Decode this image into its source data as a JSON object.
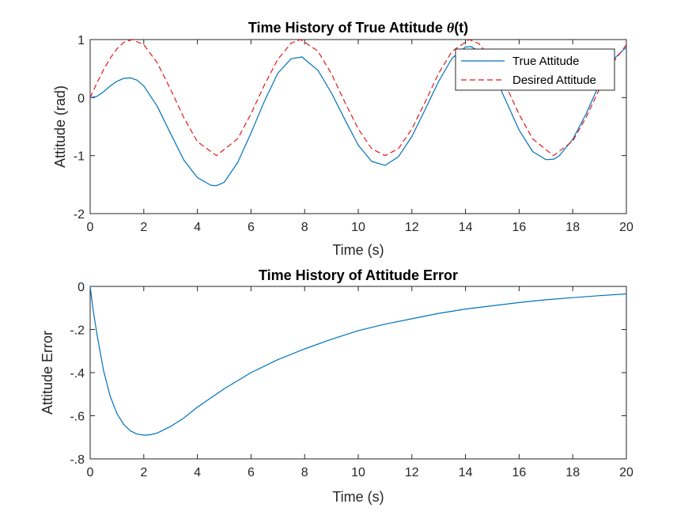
{
  "colors": {
    "true_attitude": "#0072BD",
    "desired_attitude": "#E0181B",
    "error": "#0072BD",
    "axes": "#262626"
  },
  "chart_data": [
    {
      "type": "line",
      "title_prefix": "Time History of True Attitude ",
      "title_symbol": "θ",
      "title_suffix": "(t)",
      "xlabel": "Time (s)",
      "ylabel": "Attitude (rad)",
      "xlim": [
        0,
        20
      ],
      "ylim": [
        -2,
        1
      ],
      "xticks": [
        0,
        2,
        4,
        6,
        8,
        10,
        12,
        14,
        16,
        18,
        20
      ],
      "yticks": [
        -2,
        -1,
        0,
        1
      ],
      "grid": false,
      "legend": "top-right",
      "series": [
        {
          "name": "True Attitude",
          "style": "solid",
          "x": [
            0,
            0.25,
            0.5,
            0.75,
            1.0,
            1.25,
            1.5,
            1.75,
            2.0,
            2.5,
            3.0,
            3.5,
            4.0,
            4.5,
            4.7,
            5.0,
            5.5,
            6.0,
            6.5,
            7.0,
            7.5,
            7.9,
            8.5,
            9.0,
            9.5,
            10.0,
            10.5,
            11.0,
            11.5,
            12.0,
            12.5,
            13.0,
            13.5,
            14.0,
            14.2,
            14.5,
            15.0,
            15.5,
            16.0,
            16.5,
            17.0,
            17.3,
            17.5,
            18.0,
            18.5,
            19.0,
            19.5,
            20.0
          ],
          "values": [
            0,
            0.02,
            0.1,
            0.2,
            0.28,
            0.33,
            0.34,
            0.3,
            0.2,
            -0.15,
            -0.62,
            -1.08,
            -1.38,
            -1.51,
            -1.52,
            -1.46,
            -1.12,
            -0.61,
            -0.06,
            0.42,
            0.67,
            0.7,
            0.47,
            0.08,
            -0.38,
            -0.82,
            -1.1,
            -1.17,
            -1.02,
            -0.67,
            -0.2,
            0.28,
            0.68,
            0.87,
            0.88,
            0.8,
            0.45,
            -0.05,
            -0.56,
            -0.93,
            -1.07,
            -1.06,
            -1.0,
            -0.72,
            -0.28,
            0.24,
            0.65,
            0.87
          ]
        },
        {
          "name": "Desired Attitude",
          "style": "dashed",
          "x": [
            0,
            0.25,
            0.5,
            0.75,
            1.0,
            1.25,
            1.57,
            2.0,
            2.5,
            3.0,
            3.5,
            4.0,
            4.71,
            5.5,
            6.0,
            6.5,
            7.0,
            7.5,
            7.85,
            8.5,
            9.0,
            9.5,
            10.0,
            10.5,
            11.0,
            11.5,
            12.0,
            12.5,
            13.0,
            13.5,
            14.14,
            14.5,
            15.0,
            15.5,
            16.0,
            16.5,
            17.28,
            18.0,
            18.5,
            19.0,
            19.5,
            20.0
          ],
          "values": [
            0,
            0.25,
            0.48,
            0.68,
            0.84,
            0.95,
            1.0,
            0.91,
            0.6,
            0.14,
            -0.35,
            -0.76,
            -1.0,
            -0.71,
            -0.28,
            0.22,
            0.66,
            0.94,
            1.0,
            0.8,
            0.41,
            -0.08,
            -0.54,
            -0.88,
            -1.0,
            -0.88,
            -0.54,
            -0.07,
            0.42,
            0.8,
            1.0,
            0.93,
            0.65,
            0.21,
            -0.29,
            -0.71,
            -1.0,
            -0.75,
            -0.34,
            0.15,
            0.6,
            0.91
          ]
        }
      ]
    },
    {
      "type": "line",
      "title": "Time History of Attitude Error",
      "xlabel": "Time (s)",
      "ylabel": "Attitude Error",
      "xlim": [
        0,
        20
      ],
      "ylim": [
        -0.8,
        0
      ],
      "xticks": [
        0,
        2,
        4,
        6,
        8,
        10,
        12,
        14,
        16,
        18,
        20
      ],
      "yticks": [
        -0.8,
        -0.6,
        -0.4,
        -0.2,
        0
      ],
      "grid": false,
      "series": [
        {
          "style": "solid",
          "x": [
            0,
            0.1,
            0.25,
            0.5,
            0.75,
            1.0,
            1.25,
            1.5,
            1.75,
            2.0,
            2.25,
            2.5,
            3.0,
            3.5,
            4.0,
            5.0,
            6.0,
            7.0,
            8.0,
            9.0,
            10.0,
            11.0,
            12.0,
            13.0,
            14.0,
            15.0,
            16.0,
            17.0,
            18.0,
            19.0,
            20.0
          ],
          "values": [
            0,
            -0.1,
            -0.22,
            -0.39,
            -0.51,
            -0.59,
            -0.64,
            -0.67,
            -0.685,
            -0.69,
            -0.688,
            -0.68,
            -0.65,
            -0.61,
            -0.56,
            -0.475,
            -0.4,
            -0.34,
            -0.29,
            -0.245,
            -0.205,
            -0.175,
            -0.15,
            -0.125,
            -0.105,
            -0.09,
            -0.075,
            -0.062,
            -0.052,
            -0.043,
            -0.035
          ]
        }
      ]
    }
  ]
}
